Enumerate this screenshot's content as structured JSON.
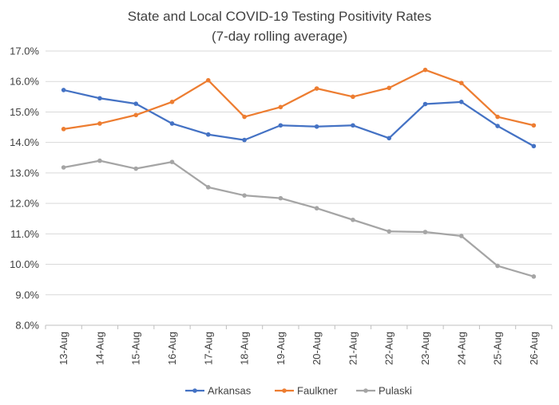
{
  "chart_data": {
    "type": "line",
    "title_lines": [
      "State and Local COVID-19 Testing Positivity Rates",
      "(7-day rolling average)"
    ],
    "xlabel": "",
    "ylabel": "",
    "categories": [
      "13-Aug",
      "14-Aug",
      "15-Aug",
      "16-Aug",
      "17-Aug",
      "18-Aug",
      "19-Aug",
      "20-Aug",
      "21-Aug",
      "22-Aug",
      "23-Aug",
      "24-Aug",
      "25-Aug",
      "26-Aug"
    ],
    "ylim": [
      8.0,
      17.0
    ],
    "ytick_values": [
      8.0,
      9.0,
      10.0,
      11.0,
      12.0,
      13.0,
      14.0,
      15.0,
      16.0,
      17.0
    ],
    "ytick_labels": [
      "8.0%",
      "9.0%",
      "10.0%",
      "11.0%",
      "12.0%",
      "13.0%",
      "14.0%",
      "15.0%",
      "16.0%",
      "17.0%"
    ],
    "grid": true,
    "legend_position": "bottom",
    "series": [
      {
        "name": "Arkansas",
        "color": "#4472C4",
        "values": [
          15.72,
          15.45,
          15.27,
          14.62,
          14.26,
          14.08,
          14.56,
          14.52,
          14.56,
          14.14,
          15.26,
          15.33,
          14.54,
          13.88
        ]
      },
      {
        "name": "Faulkner",
        "color": "#ED7D31",
        "values": [
          14.44,
          14.62,
          14.9,
          15.33,
          16.04,
          14.84,
          15.16,
          15.77,
          15.5,
          15.79,
          16.38,
          15.95,
          14.84,
          14.56
        ]
      },
      {
        "name": "Pulaski",
        "color": "#A5A5A5",
        "values": [
          13.18,
          13.4,
          13.14,
          13.36,
          12.53,
          12.26,
          12.17,
          11.84,
          11.46,
          11.08,
          11.06,
          10.93,
          9.95,
          9.6
        ]
      }
    ]
  }
}
